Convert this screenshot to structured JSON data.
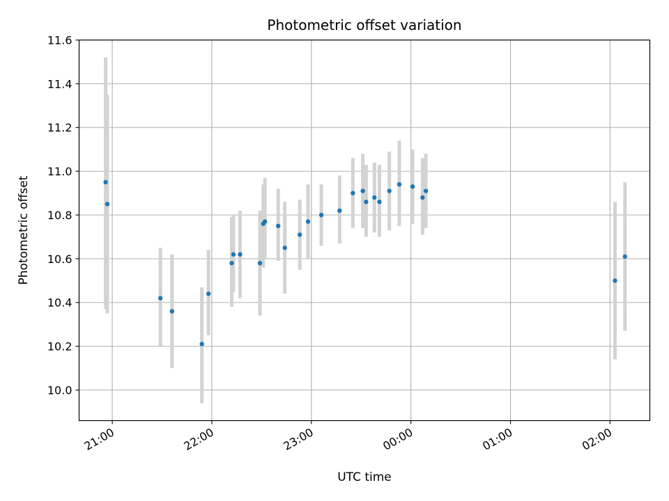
{
  "chart_data": {
    "type": "scatter",
    "title": "Photometric offset variation",
    "xlabel": "UTC time",
    "ylabel": "Photometric offset",
    "grid": true,
    "x_unit": "UTC time (HH:MM), points after midnight belong to the next day",
    "xlim": [
      "20:40",
      "02:24"
    ],
    "ylim": [
      9.86,
      11.6
    ],
    "xticks": [
      "21:00",
      "22:00",
      "23:00",
      "00:00",
      "01:00",
      "02:00"
    ],
    "yticks": [
      "10.0",
      "10.2",
      "10.4",
      "10.6",
      "10.8",
      "11.0",
      "11.2",
      "11.4",
      "11.6"
    ],
    "colors": {
      "marker": "#1f77b4",
      "errorbar": "#d3d3d3",
      "grid": "#b0b0b0"
    },
    "series": [
      {
        "points": [
          {
            "x": "20:56",
            "y": 10.95,
            "ylow": 10.37,
            "yhigh": 11.52
          },
          {
            "x": "20:57",
            "y": 10.85,
            "ylow": 10.35,
            "yhigh": 11.35
          },
          {
            "x": "21:29",
            "y": 10.42,
            "ylow": 10.2,
            "yhigh": 10.65
          },
          {
            "x": "21:36",
            "y": 10.36,
            "ylow": 10.1,
            "yhigh": 10.62
          },
          {
            "x": "21:54",
            "y": 10.21,
            "ylow": 9.94,
            "yhigh": 10.47
          },
          {
            "x": "21:58",
            "y": 10.44,
            "ylow": 10.25,
            "yhigh": 10.64
          },
          {
            "x": "22:12",
            "y": 10.58,
            "ylow": 10.38,
            "yhigh": 10.79
          },
          {
            "x": "22:13",
            "y": 10.62,
            "ylow": 10.45,
            "yhigh": 10.8
          },
          {
            "x": "22:17",
            "y": 10.62,
            "ylow": 10.42,
            "yhigh": 10.82
          },
          {
            "x": "22:29",
            "y": 10.58,
            "ylow": 10.34,
            "yhigh": 10.82
          },
          {
            "x": "22:31",
            "y": 10.76,
            "ylow": 10.56,
            "yhigh": 10.94
          },
          {
            "x": "22:32",
            "y": 10.77,
            "ylow": 10.6,
            "yhigh": 10.97
          },
          {
            "x": "22:40",
            "y": 10.75,
            "ylow": 10.59,
            "yhigh": 10.92
          },
          {
            "x": "22:44",
            "y": 10.65,
            "ylow": 10.44,
            "yhigh": 10.86
          },
          {
            "x": "22:53",
            "y": 10.71,
            "ylow": 10.55,
            "yhigh": 10.87
          },
          {
            "x": "22:58",
            "y": 10.77,
            "ylow": 10.6,
            "yhigh": 10.94
          },
          {
            "x": "23:06",
            "y": 10.8,
            "ylow": 10.66,
            "yhigh": 10.94
          },
          {
            "x": "23:17",
            "y": 10.82,
            "ylow": 10.67,
            "yhigh": 10.98
          },
          {
            "x": "23:25",
            "y": 10.9,
            "ylow": 10.74,
            "yhigh": 11.06
          },
          {
            "x": "23:31",
            "y": 10.91,
            "ylow": 10.74,
            "yhigh": 11.08
          },
          {
            "x": "23:33",
            "y": 10.86,
            "ylow": 10.7,
            "yhigh": 11.03
          },
          {
            "x": "23:38",
            "y": 10.88,
            "ylow": 10.72,
            "yhigh": 11.04
          },
          {
            "x": "23:41",
            "y": 10.86,
            "ylow": 10.7,
            "yhigh": 11.03
          },
          {
            "x": "23:47",
            "y": 10.91,
            "ylow": 10.73,
            "yhigh": 11.09
          },
          {
            "x": "23:53",
            "y": 10.94,
            "ylow": 10.75,
            "yhigh": 11.14
          },
          {
            "x": "00:01",
            "y": 10.93,
            "ylow": 10.76,
            "yhigh": 11.1
          },
          {
            "x": "00:07",
            "y": 10.88,
            "ylow": 10.71,
            "yhigh": 11.06
          },
          {
            "x": "00:09",
            "y": 10.91,
            "ylow": 10.74,
            "yhigh": 11.08
          },
          {
            "x": "02:03",
            "y": 10.5,
            "ylow": 10.14,
            "yhigh": 10.86
          },
          {
            "x": "02:09",
            "y": 10.61,
            "ylow": 10.27,
            "yhigh": 10.95
          }
        ]
      }
    ]
  }
}
